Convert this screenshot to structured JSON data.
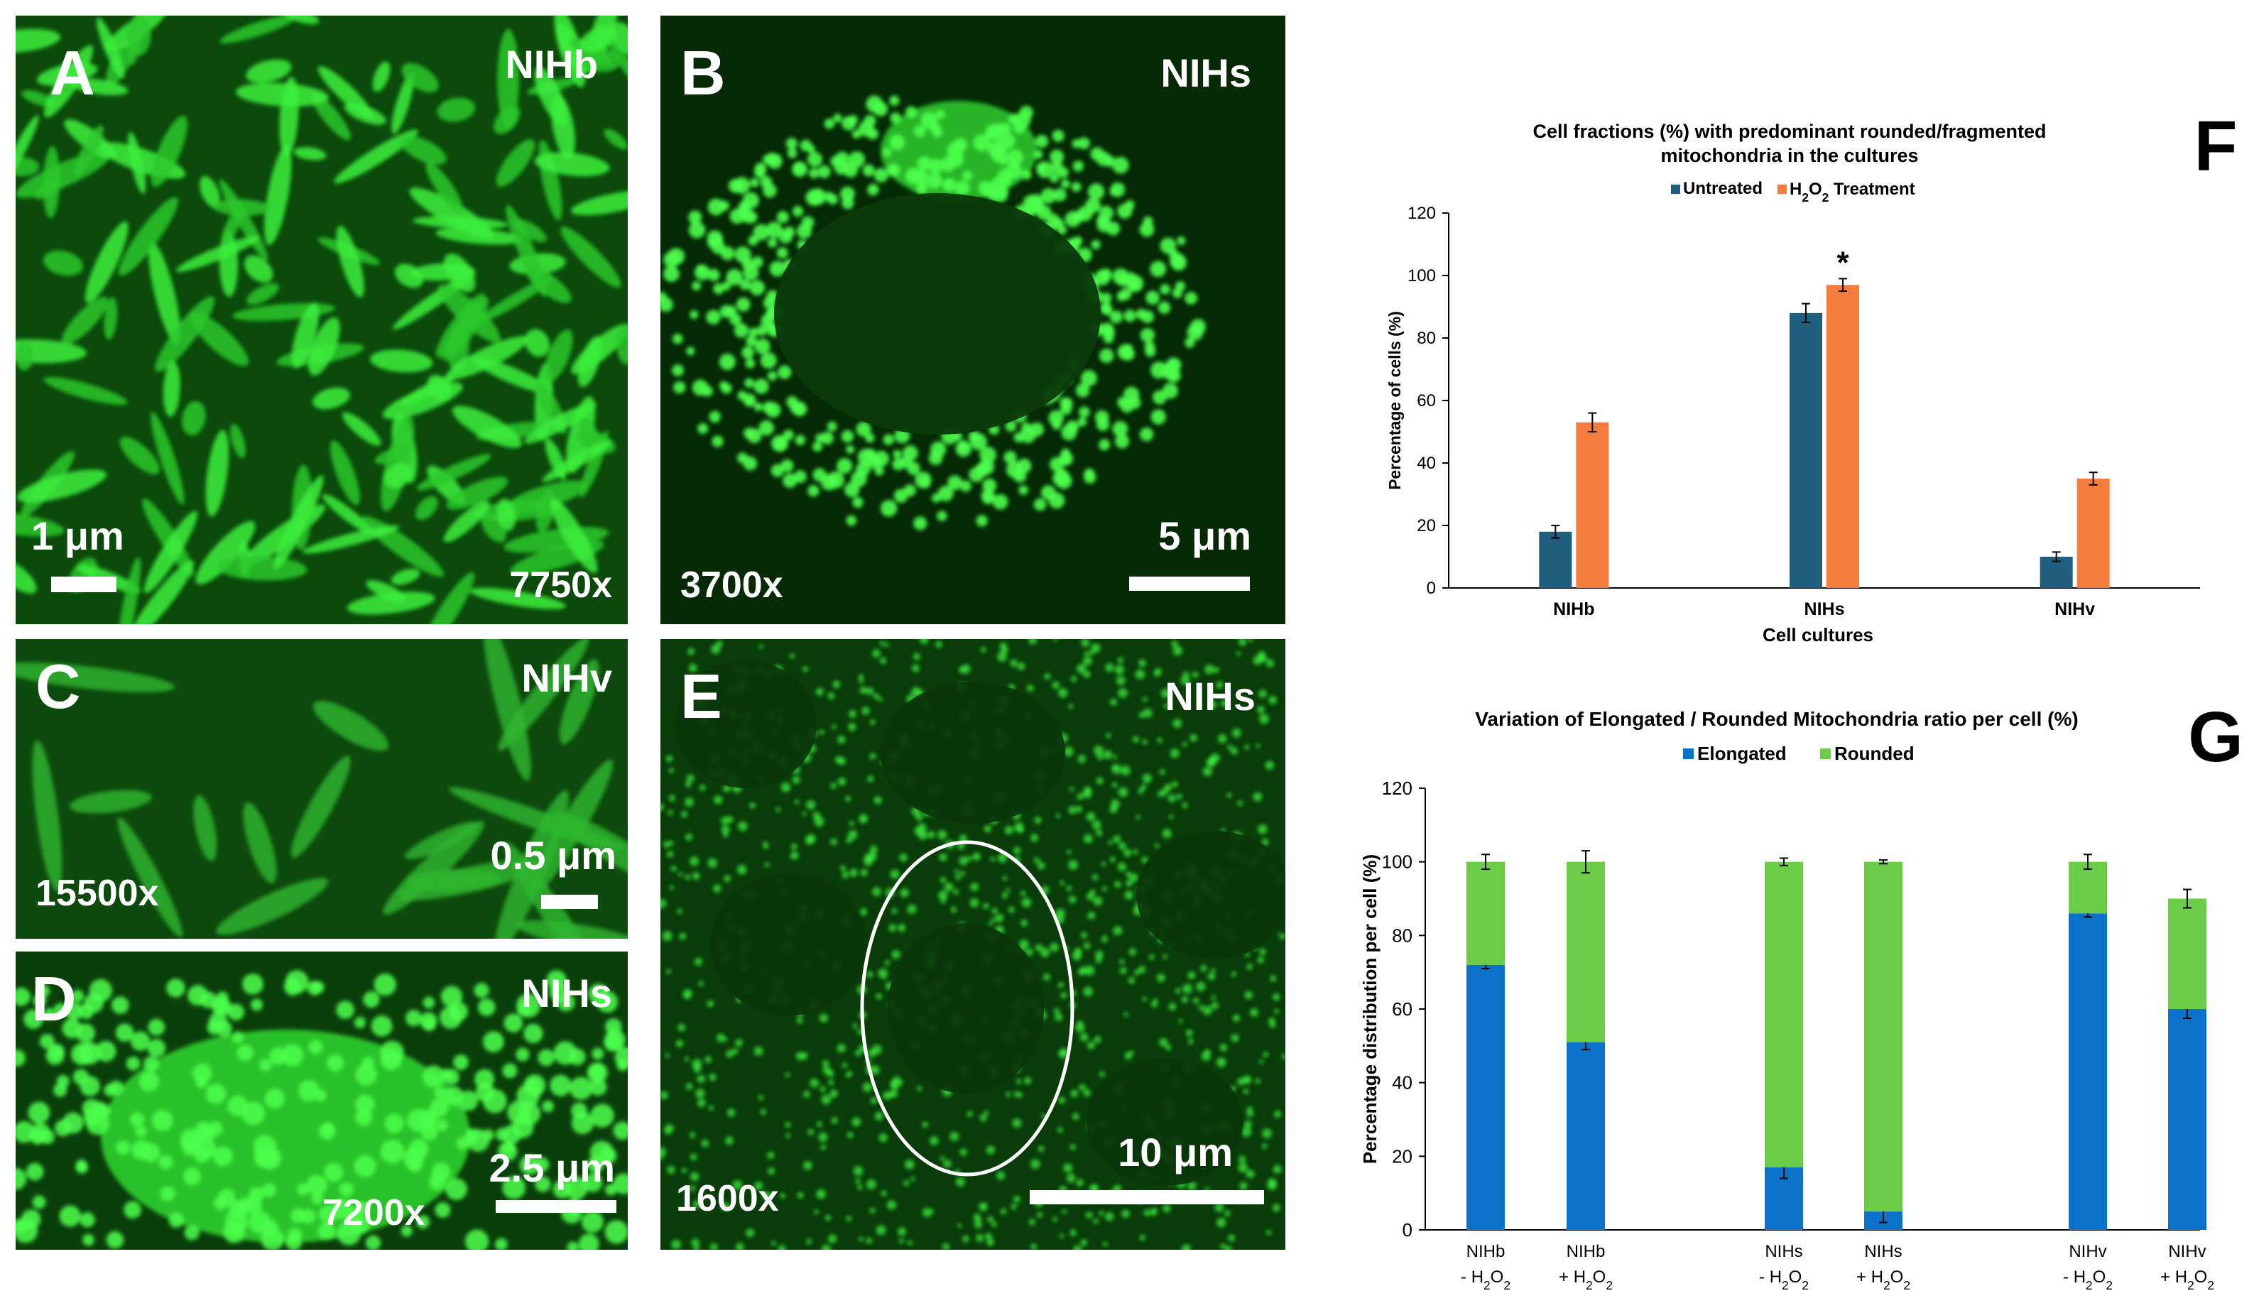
{
  "micrographs": [
    {
      "id": "A",
      "letter": "A",
      "name": "NIHb",
      "magnification": "7750x",
      "scale": "1 μm",
      "style": "network"
    },
    {
      "id": "B",
      "letter": "B",
      "name": "NIHs",
      "magnification": "3700x",
      "scale": "5 μm",
      "style": "ring"
    },
    {
      "id": "C",
      "letter": "C",
      "name": "NIHv",
      "magnification": "15500x",
      "scale": "0.5 μm",
      "style": "faint"
    },
    {
      "id": "D",
      "letter": "D",
      "name": "NIHs",
      "magnification": "7200x",
      "scale": "2.5 μm",
      "style": "dense"
    },
    {
      "id": "E",
      "letter": "E",
      "name": "NIHs",
      "magnification": "1600x",
      "scale": "10 μm",
      "style": "cells"
    }
  ],
  "chart_data": [
    {
      "panel_label": "F",
      "type": "bar",
      "title_lines": [
        "Cell fractions (%)  with predominant rounded/fragmented",
        "mitochondria in the cultures"
      ],
      "legend_placement": "top-center",
      "xlabel": "Cell cultures",
      "ylabel": "Percentage of cells (%)",
      "ylim": [
        0,
        120
      ],
      "yticks": [
        0,
        20,
        40,
        60,
        80,
        100,
        120
      ],
      "categories": [
        "NIHb",
        "NIHs",
        "NIHv"
      ],
      "series": [
        {
          "name": "Untreated",
          "color": "#1f5f7d",
          "values": [
            18,
            88,
            10
          ],
          "errors": [
            2,
            3,
            1.5
          ]
        },
        {
          "name": "H2O2 Treatment",
          "legend_main": "H",
          "legend_sub": "2",
          "legend_mid": "O",
          "legend_sub2": "2",
          "legend_rest": "Treatment",
          "color": "#f47c3c",
          "values": [
            53,
            97,
            35
          ],
          "errors": [
            3,
            2,
            2
          ]
        }
      ],
      "annotations": [
        {
          "text": "*",
          "category": "NIHs",
          "series": "H2O2 Treatment"
        }
      ]
    },
    {
      "panel_label": "G",
      "type": "bar",
      "stacked": true,
      "title": "Variation of  Elongated / Rounded Mitochondria ratio per cell (%)",
      "legend_placement": "top-center",
      "ylabel": "Percentage distribution per cell (%)",
      "ylim": [
        0,
        120
      ],
      "yticks": [
        0,
        20,
        40,
        60,
        80,
        100,
        120
      ],
      "categories": [
        {
          "line1": "NIHb",
          "sign": "- H",
          "sub": "2",
          "mid": "O",
          "sub2": "2"
        },
        {
          "line1": "NIHb",
          "sign": "+ H",
          "sub": "2",
          "mid": "O",
          "sub2": "2"
        },
        {
          "line1": "NIHs",
          "sign": "- H",
          "sub": "2",
          "mid": "O",
          "sub2": "2"
        },
        {
          "line1": "NIHs",
          "sign": "+ H",
          "sub": "2",
          "mid": "O",
          "sub2": "2"
        },
        {
          "line1": "NIHv",
          "sign": "- H",
          "sub": "2",
          "mid": "O",
          "sub2": "2"
        },
        {
          "line1": "NIHv",
          "sign": "+ H",
          "sub": "2",
          "mid": "O",
          "sub2": "2"
        }
      ],
      "series": [
        {
          "name": "Elongated",
          "color": "#0a72c8",
          "values": [
            72,
            51,
            17,
            5,
            86,
            60
          ],
          "errors": [
            1,
            2,
            3,
            3,
            1,
            2.5
          ]
        },
        {
          "name": "Rounded",
          "color": "#6bcd47",
          "values": [
            28,
            49,
            83,
            95,
            14,
            30
          ],
          "errors": [
            2,
            3,
            1,
            0.5,
            2,
            2.5
          ]
        }
      ]
    }
  ]
}
